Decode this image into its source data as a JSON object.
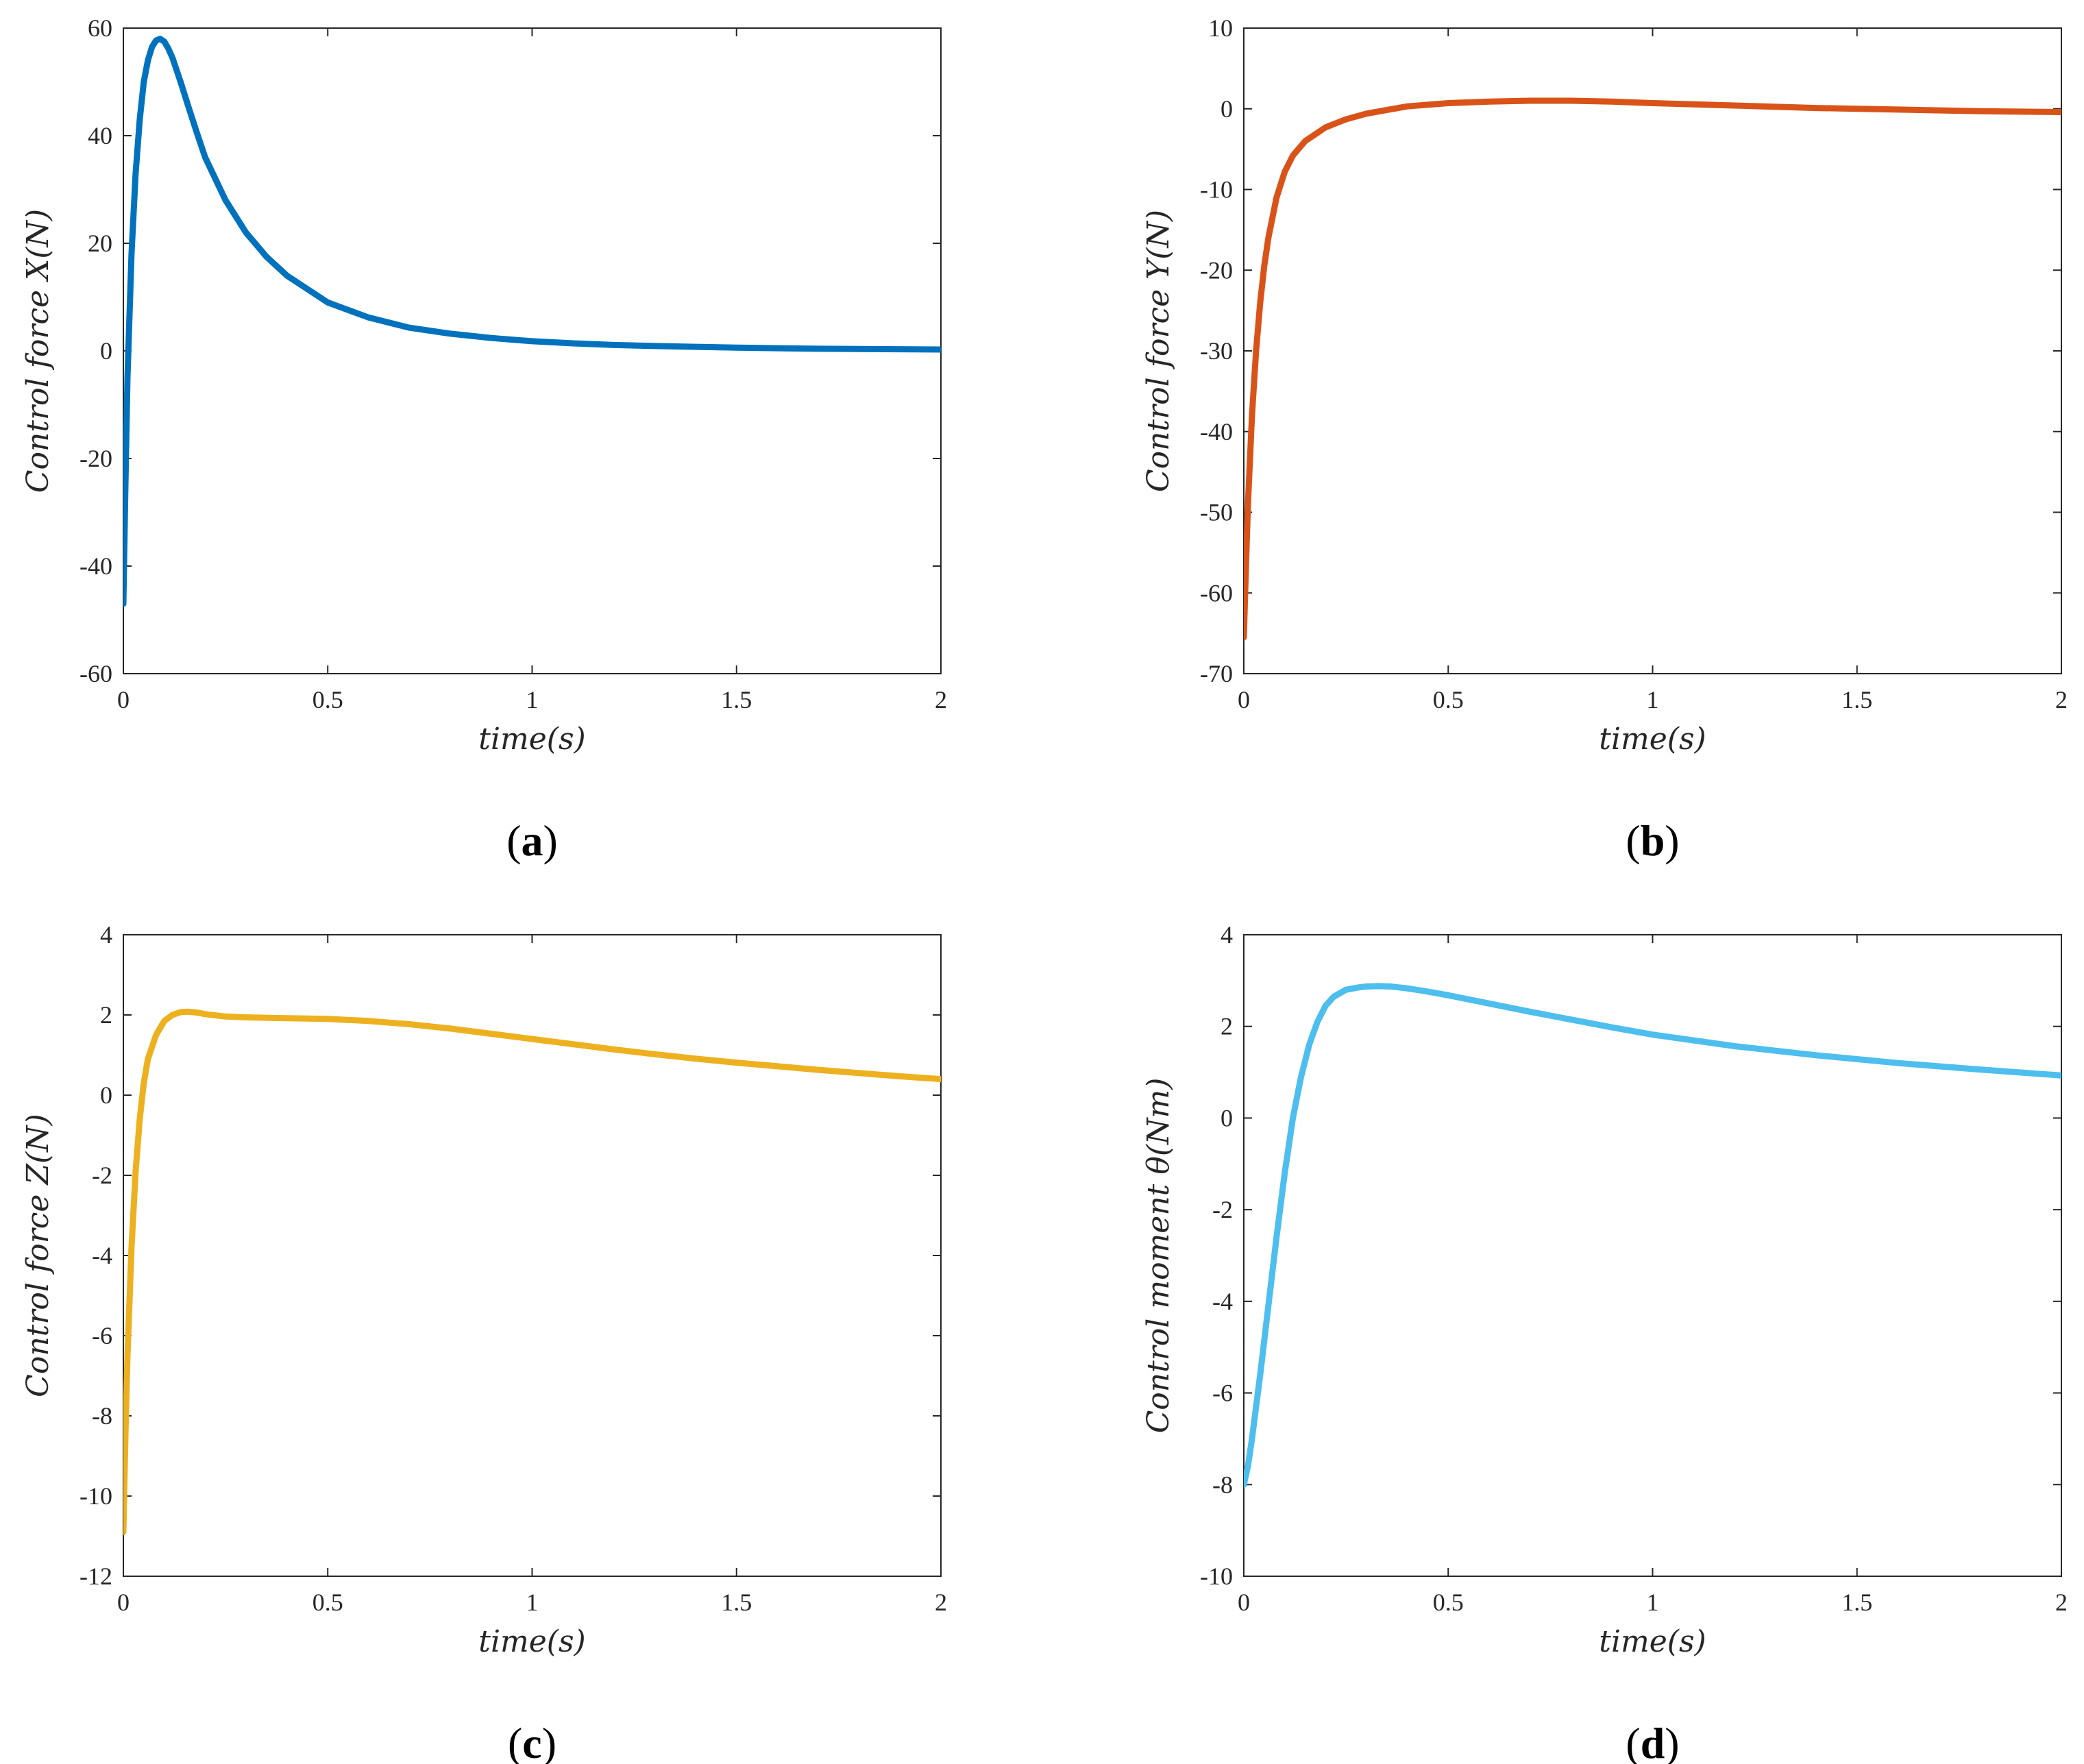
{
  "chart_data": [
    {
      "id": "a",
      "type": "line",
      "panel_label": "a",
      "title": "",
      "xlabel": "time(s)",
      "ylabel": "Control   force   X(N)",
      "xlim": [
        0,
        2
      ],
      "ylim": [
        -60,
        60
      ],
      "xticks": [
        0,
        0.5,
        1,
        1.5,
        2
      ],
      "xtick_labels": [
        "0",
        "0.5",
        "1",
        "1.5",
        "2"
      ],
      "yticks": [
        -60,
        -40,
        -20,
        0,
        20,
        40,
        60
      ],
      "ytick_labels": [
        "-60",
        "-40",
        "-20",
        "0",
        "20",
        "40",
        "60"
      ],
      "grid": false,
      "series": [
        {
          "name": "Control force X",
          "color": "#0072BD",
          "x": [
            0,
            0.005,
            0.01,
            0.02,
            0.03,
            0.04,
            0.05,
            0.06,
            0.07,
            0.08,
            0.09,
            0.1,
            0.11,
            0.12,
            0.14,
            0.16,
            0.18,
            0.2,
            0.25,
            0.3,
            0.35,
            0.4,
            0.5,
            0.6,
            0.7,
            0.8,
            0.9,
            1.0,
            1.1,
            1.2,
            1.3,
            1.4,
            1.5,
            1.6,
            1.7,
            1.8,
            1.9,
            2.0
          ],
          "y": [
            -47,
            -25,
            -5,
            18,
            33,
            43,
            50,
            54,
            56.5,
            57.7,
            58,
            57.5,
            56.2,
            54.5,
            50,
            45.2,
            40.5,
            36,
            28,
            22,
            17.5,
            14,
            9,
            6.2,
            4.3,
            3.2,
            2.4,
            1.8,
            1.4,
            1.1,
            0.9,
            0.75,
            0.6,
            0.5,
            0.4,
            0.35,
            0.3,
            0.25
          ]
        }
      ]
    },
    {
      "id": "b",
      "type": "line",
      "panel_label": "b",
      "title": "",
      "xlabel": "time(s)",
      "ylabel": "Control   force   Y(N)",
      "xlim": [
        0,
        2
      ],
      "ylim": [
        -70,
        10
      ],
      "xticks": [
        0,
        0.5,
        1,
        1.5,
        2
      ],
      "xtick_labels": [
        "0",
        "0.5",
        "1",
        "1.5",
        "2"
      ],
      "yticks": [
        -70,
        -60,
        -50,
        -40,
        -30,
        -20,
        -10,
        0,
        10
      ],
      "ytick_labels": [
        "-70",
        "-60",
        "-50",
        "-40",
        "-30",
        "-20",
        "-10",
        "0",
        "10"
      ],
      "grid": false,
      "series": [
        {
          "name": "Control force Y",
          "color": "#D95319",
          "x": [
            0,
            0.005,
            0.01,
            0.02,
            0.03,
            0.04,
            0.05,
            0.06,
            0.08,
            0.1,
            0.12,
            0.15,
            0.2,
            0.25,
            0.3,
            0.4,
            0.5,
            0.6,
            0.7,
            0.8,
            0.9,
            1.0,
            1.2,
            1.4,
            1.6,
            1.8,
            2.0
          ],
          "y": [
            -65.5,
            -57,
            -49,
            -38,
            -30,
            -24,
            -19.5,
            -16,
            -11,
            -7.8,
            -5.8,
            -4,
            -2.3,
            -1.3,
            -0.6,
            0.3,
            0.7,
            0.9,
            1.0,
            1.0,
            0.9,
            0.7,
            0.4,
            0.1,
            -0.1,
            -0.3,
            -0.4
          ]
        }
      ]
    },
    {
      "id": "c",
      "type": "line",
      "panel_label": "c",
      "title": "",
      "xlabel": "time(s)",
      "ylabel": "Control   force   Z(N)",
      "xlim": [
        0,
        2
      ],
      "ylim": [
        -12,
        4
      ],
      "xticks": [
        0,
        0.5,
        1,
        1.5,
        2
      ],
      "xtick_labels": [
        "0",
        "0.5",
        "1",
        "1.5",
        "2"
      ],
      "yticks": [
        -12,
        -10,
        -8,
        -6,
        -4,
        -2,
        0,
        2,
        4
      ],
      "ytick_labels": [
        "-12",
        "-10",
        "-8",
        "-6",
        "-4",
        "-2",
        "0",
        "2",
        "4"
      ],
      "grid": false,
      "series": [
        {
          "name": "Control force Z",
          "color": "#EDB120",
          "x": [
            0,
            0.005,
            0.01,
            0.02,
            0.03,
            0.04,
            0.05,
            0.06,
            0.08,
            0.1,
            0.12,
            0.14,
            0.16,
            0.18,
            0.2,
            0.25,
            0.3,
            0.4,
            0.5,
            0.6,
            0.7,
            0.8,
            0.9,
            1.0,
            1.1,
            1.2,
            1.3,
            1.4,
            1.5,
            1.6,
            1.7,
            1.8,
            1.9,
            2.0
          ],
          "y": [
            -10.9,
            -8.5,
            -6.5,
            -3.8,
            -1.9,
            -0.6,
            0.3,
            0.9,
            1.5,
            1.85,
            2.0,
            2.07,
            2.08,
            2.06,
            2.02,
            1.96,
            1.94,
            1.92,
            1.9,
            1.85,
            1.77,
            1.66,
            1.53,
            1.4,
            1.27,
            1.14,
            1.02,
            0.91,
            0.81,
            0.72,
            0.63,
            0.55,
            0.47,
            0.4
          ]
        }
      ]
    },
    {
      "id": "d",
      "type": "line",
      "panel_label": "d",
      "title": "",
      "xlabel": "time(s)",
      "ylabel": "Control   moment   θ(Nm)",
      "xlim": [
        0,
        2
      ],
      "ylim": [
        -10,
        4
      ],
      "xticks": [
        0,
        0.5,
        1,
        1.5,
        2
      ],
      "xtick_labels": [
        "0",
        "0.5",
        "1",
        "1.5",
        "2"
      ],
      "yticks": [
        -10,
        -8,
        -6,
        -4,
        -2,
        0,
        2,
        4
      ],
      "ytick_labels": [
        "-10",
        "-8",
        "-6",
        "-4",
        "-2",
        "0",
        "2",
        "4"
      ],
      "grid": false,
      "series": [
        {
          "name": "Control moment theta",
          "color": "#4DBEEE",
          "x": [
            0,
            0.01,
            0.02,
            0.04,
            0.06,
            0.08,
            0.1,
            0.12,
            0.14,
            0.16,
            0.18,
            0.2,
            0.22,
            0.25,
            0.28,
            0.3,
            0.33,
            0.36,
            0.4,
            0.45,
            0.5,
            0.6,
            0.7,
            0.8,
            0.9,
            1.0,
            1.2,
            1.4,
            1.6,
            1.8,
            2.0
          ],
          "y": [
            -8,
            -7.6,
            -7.0,
            -5.6,
            -4.1,
            -2.6,
            -1.2,
            0.0,
            0.9,
            1.6,
            2.1,
            2.45,
            2.65,
            2.8,
            2.85,
            2.87,
            2.88,
            2.87,
            2.83,
            2.76,
            2.68,
            2.5,
            2.32,
            2.15,
            1.98,
            1.82,
            1.57,
            1.37,
            1.2,
            1.06,
            0.93
          ]
        }
      ]
    }
  ]
}
